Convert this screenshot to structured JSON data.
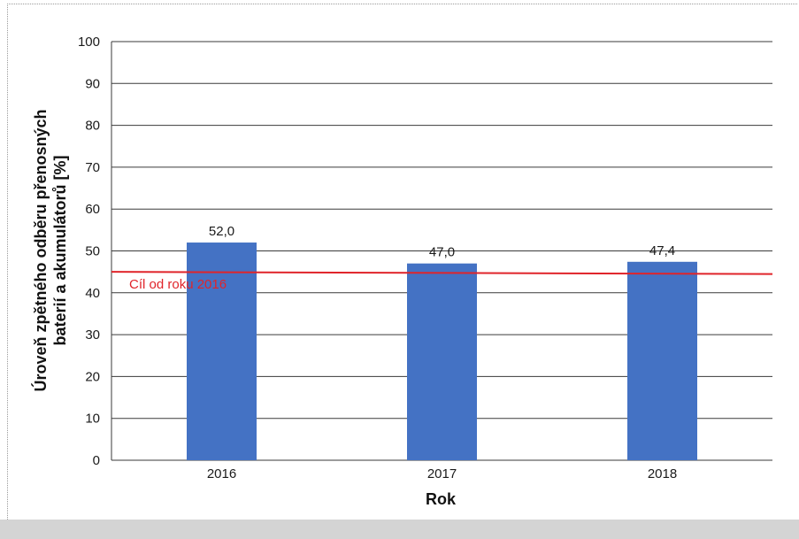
{
  "colors": {
    "bar": "#4472c4",
    "target_line": "#e0242a",
    "grid": "#3a3a3a",
    "background": "#ffffff",
    "footer_band": "#d4d4d4"
  },
  "chart_data": {
    "type": "bar",
    "categories": [
      "2016",
      "2017",
      "2018"
    ],
    "values": [
      52.0,
      47.0,
      47.4
    ],
    "value_labels": [
      "52,0",
      "47,0",
      "47,4"
    ],
    "xlabel": "Rok",
    "ylabel_lines": [
      "Úroveň zpětného odběru přenosných",
      "baterií a akumulátorů [%]"
    ],
    "ylim": [
      0,
      100
    ],
    "yticks": [
      0,
      10,
      20,
      30,
      40,
      50,
      60,
      70,
      80,
      90,
      100
    ],
    "ytick_labels": [
      "0",
      "10",
      "20",
      "30",
      "40",
      "50",
      "60",
      "70",
      "80",
      "90",
      "100"
    ],
    "grid": true,
    "legend": "none",
    "target": {
      "value": 45,
      "label": "Cíl od roku 2016"
    }
  }
}
